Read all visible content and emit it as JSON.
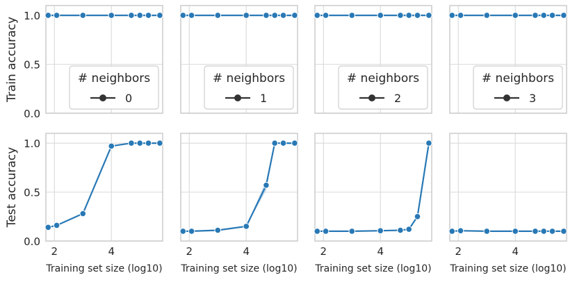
{
  "chart_data": {
    "type": "line",
    "layout": "grid 2x4, shared x and y axes",
    "xlabel": "Training set size (log10)",
    "row_ylabels": [
      "Train accuracy",
      "Test accuracy"
    ],
    "xlim": [
      1.7,
      5.8
    ],
    "ylim": [
      0,
      1.1
    ],
    "xticks": [
      2,
      4
    ],
    "yticks": [
      0.0,
      0.5,
      1.0
    ],
    "ytick_labels": [
      "0.0",
      "0.5",
      "1.0"
    ],
    "grid": true,
    "series_color": "#2878b5",
    "band_color": "#a9c8e2",
    "legend": {
      "title": "# neighbors",
      "placement": "lower-right",
      "marker": "line-with-dot"
    },
    "x": [
      1.78,
      2.08,
      3.0,
      4.0,
      4.7,
      5.0,
      5.3,
      5.7
    ],
    "panels": [
      {
        "row": 0,
        "col": 0,
        "legend_label": "0",
        "values": [
          1.0,
          1.0,
          1.0,
          1.0,
          1.0,
          1.0,
          1.0,
          1.0
        ]
      },
      {
        "row": 0,
        "col": 1,
        "legend_label": "1",
        "values": [
          1.0,
          1.0,
          1.0,
          1.0,
          1.0,
          1.0,
          1.0,
          1.0
        ]
      },
      {
        "row": 0,
        "col": 2,
        "legend_label": "2",
        "values": [
          1.0,
          1.0,
          1.0,
          1.0,
          1.0,
          1.0,
          1.0,
          1.0
        ]
      },
      {
        "row": 0,
        "col": 3,
        "legend_label": "3",
        "values": [
          1.0,
          1.0,
          1.0,
          1.0,
          1.0,
          1.0,
          1.0,
          1.0
        ]
      },
      {
        "row": 1,
        "col": 0,
        "x": [
          1.78,
          2.08,
          3.0,
          4.0,
          4.7,
          5.0,
          5.3,
          5.7
        ],
        "values": [
          0.14,
          0.16,
          0.28,
          0.97,
          1.0,
          1.0,
          1.0,
          1.0
        ]
      },
      {
        "row": 1,
        "col": 1,
        "x": [
          1.78,
          2.08,
          3.0,
          4.0,
          4.7,
          5.0,
          5.3,
          5.7
        ],
        "values": [
          0.1,
          0.1,
          0.11,
          0.15,
          0.57,
          1.0,
          1.0,
          1.0
        ],
        "band": [
          [
            4.0,
            0.15,
            0.15
          ],
          [
            4.7,
            0.52,
            0.62
          ],
          [
            5.0,
            1.0,
            1.0
          ]
        ]
      },
      {
        "row": 1,
        "col": 2,
        "x": [
          1.78,
          2.08,
          3.0,
          4.0,
          4.7,
          5.0,
          5.3,
          5.7
        ],
        "values": [
          0.1,
          0.1,
          0.1,
          0.105,
          0.11,
          0.12,
          0.25,
          1.0
        ]
      },
      {
        "row": 1,
        "col": 3,
        "x": [
          1.78,
          2.08,
          3.0,
          4.0,
          4.7,
          5.0,
          5.3,
          5.7
        ],
        "values": [
          0.1,
          0.105,
          0.1,
          0.1,
          0.1,
          0.1,
          0.1,
          0.1
        ]
      }
    ]
  }
}
